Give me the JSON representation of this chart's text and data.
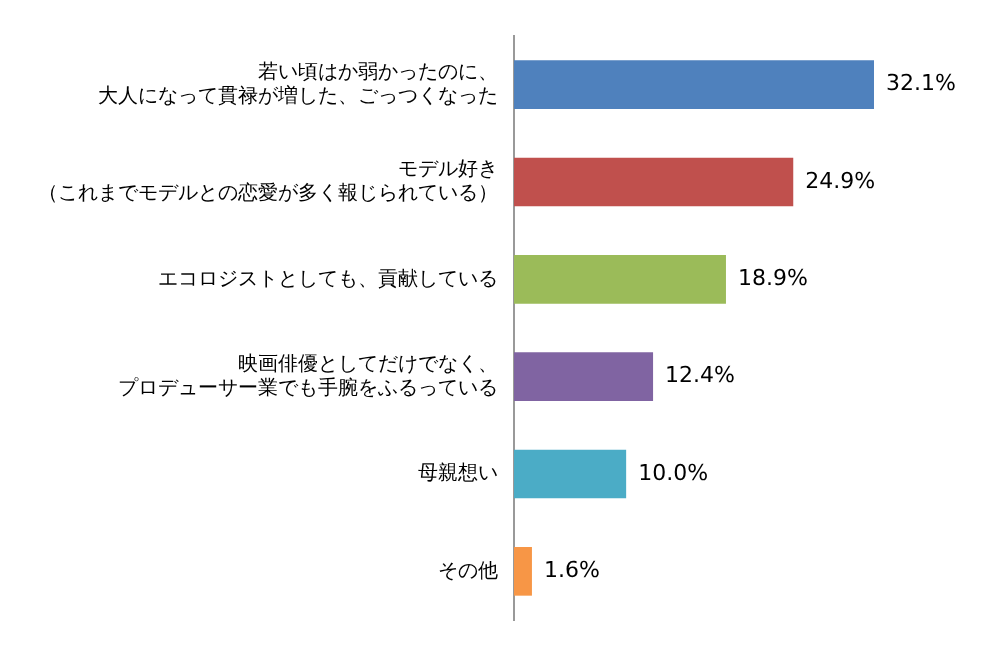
{
  "chart_data": {
    "type": "bar",
    "orientation": "horizontal",
    "categories": [
      "若い頃はか弱かったのに、大人になって貫禄が増した、ごっつくなった",
      "モデル好き（これまでモデルとの恋愛が多く報じられている）",
      "エコロジストとしても、貢献している",
      "映画俳優としてだけでなく、プロデューサー業でも手腕をふるっている",
      "母親想い",
      "その他"
    ],
    "values": [
      32.1,
      24.9,
      18.9,
      12.4,
      10.0,
      1.6
    ],
    "colors": [
      "#4f81bd",
      "#c0504d",
      "#9bbb59",
      "#8064a2",
      "#4bacc6",
      "#f79646"
    ],
    "value_labels": [
      "32.1%",
      "24.9%",
      "18.9%",
      "12.4%",
      "10.0%",
      "1.6%"
    ],
    "legend": false
  }
}
